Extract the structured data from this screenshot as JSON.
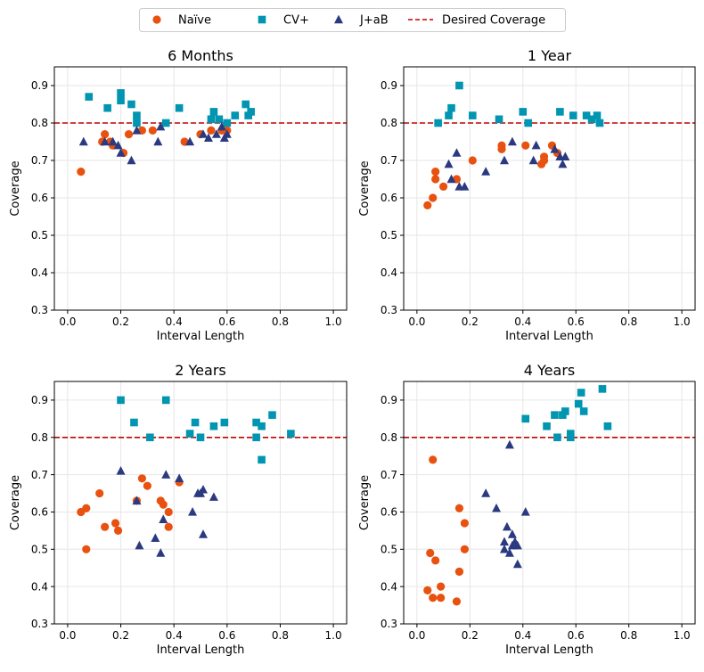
{
  "colors": {
    "naive": "#e8510f",
    "cv_plus": "#0095b0",
    "jab": "#2b3a80",
    "desired": "#c00000",
    "grid": "#e6e6e6",
    "axis": "#000000"
  },
  "legend": {
    "placement": "top-center",
    "items": [
      {
        "key": "naive",
        "label": "Naïve",
        "marker": "circle"
      },
      {
        "key": "cv_plus",
        "label": "CV+",
        "marker": "square"
      },
      {
        "key": "jab",
        "label": "J+aB",
        "marker": "triangle"
      },
      {
        "key": "desired",
        "label": "Desired Coverage",
        "marker": "dashed-line"
      }
    ]
  },
  "chart_data": [
    {
      "type": "scatter",
      "title": "6 Months",
      "xlabel": "Interval Length",
      "ylabel": "Coverage",
      "xlim": [
        -0.05,
        1.05
      ],
      "ylim": [
        0.3,
        0.95
      ],
      "xticks": [
        "0.0",
        "0.2",
        "0.4",
        "0.6",
        "0.8",
        "1.0"
      ],
      "yticks": [
        "0.3",
        "0.4",
        "0.5",
        "0.6",
        "0.7",
        "0.8",
        "0.9"
      ],
      "grid": true,
      "reference_line": {
        "name": "Desired Coverage",
        "y": 0.8
      },
      "series": [
        {
          "name": "Naïve",
          "key": "naive",
          "points": [
            [
              0.05,
              0.67
            ],
            [
              0.13,
              0.75
            ],
            [
              0.14,
              0.77
            ],
            [
              0.16,
              0.75
            ],
            [
              0.17,
              0.74
            ],
            [
              0.21,
              0.72
            ],
            [
              0.23,
              0.77
            ],
            [
              0.28,
              0.78
            ],
            [
              0.32,
              0.78
            ],
            [
              0.44,
              0.75
            ],
            [
              0.5,
              0.77
            ],
            [
              0.54,
              0.78
            ],
            [
              0.58,
              0.78
            ],
            [
              0.6,
              0.78
            ]
          ]
        },
        {
          "name": "CV+",
          "key": "cv_plus",
          "points": [
            [
              0.08,
              0.87
            ],
            [
              0.15,
              0.84
            ],
            [
              0.2,
              0.88
            ],
            [
              0.2,
              0.86
            ],
            [
              0.24,
              0.85
            ],
            [
              0.26,
              0.82
            ],
            [
              0.26,
              0.8
            ],
            [
              0.37,
              0.8
            ],
            [
              0.42,
              0.84
            ],
            [
              0.54,
              0.81
            ],
            [
              0.55,
              0.83
            ],
            [
              0.57,
              0.81
            ],
            [
              0.6,
              0.8
            ],
            [
              0.63,
              0.82
            ],
            [
              0.67,
              0.85
            ],
            [
              0.68,
              0.82
            ],
            [
              0.69,
              0.83
            ]
          ]
        },
        {
          "name": "J+aB",
          "key": "jab",
          "points": [
            [
              0.06,
              0.75
            ],
            [
              0.14,
              0.75
            ],
            [
              0.17,
              0.75
            ],
            [
              0.19,
              0.74
            ],
            [
              0.2,
              0.72
            ],
            [
              0.24,
              0.7
            ],
            [
              0.26,
              0.78
            ],
            [
              0.34,
              0.75
            ],
            [
              0.35,
              0.79
            ],
            [
              0.46,
              0.75
            ],
            [
              0.51,
              0.77
            ],
            [
              0.53,
              0.76
            ],
            [
              0.56,
              0.77
            ],
            [
              0.58,
              0.79
            ],
            [
              0.59,
              0.76
            ],
            [
              0.6,
              0.77
            ]
          ]
        }
      ]
    },
    {
      "type": "scatter",
      "title": "1 Year",
      "xlabel": "Interval Length",
      "ylabel": "Coverage",
      "xlim": [
        -0.05,
        1.05
      ],
      "ylim": [
        0.3,
        0.95
      ],
      "xticks": [
        "0.0",
        "0.2",
        "0.4",
        "0.6",
        "0.8",
        "1.0"
      ],
      "yticks": [
        "0.3",
        "0.4",
        "0.5",
        "0.6",
        "0.7",
        "0.8",
        "0.9"
      ],
      "grid": true,
      "reference_line": {
        "name": "Desired Coverage",
        "y": 0.8
      },
      "series": [
        {
          "name": "Naïve",
          "key": "naive",
          "points": [
            [
              0.04,
              0.58
            ],
            [
              0.06,
              0.6
            ],
            [
              0.07,
              0.67
            ],
            [
              0.07,
              0.65
            ],
            [
              0.1,
              0.63
            ],
            [
              0.15,
              0.65
            ],
            [
              0.21,
              0.7
            ],
            [
              0.32,
              0.73
            ],
            [
              0.32,
              0.74
            ],
            [
              0.41,
              0.74
            ],
            [
              0.47,
              0.69
            ],
            [
              0.48,
              0.71
            ],
            [
              0.48,
              0.7
            ],
            [
              0.51,
              0.74
            ],
            [
              0.53,
              0.72
            ]
          ]
        },
        {
          "name": "CV+",
          "key": "cv_plus",
          "points": [
            [
              0.08,
              0.8
            ],
            [
              0.12,
              0.82
            ],
            [
              0.13,
              0.84
            ],
            [
              0.16,
              0.9
            ],
            [
              0.21,
              0.82
            ],
            [
              0.31,
              0.81
            ],
            [
              0.4,
              0.83
            ],
            [
              0.42,
              0.8
            ],
            [
              0.54,
              0.83
            ],
            [
              0.59,
              0.82
            ],
            [
              0.64,
              0.82
            ],
            [
              0.66,
              0.81
            ],
            [
              0.68,
              0.82
            ],
            [
              0.69,
              0.8
            ]
          ]
        },
        {
          "name": "J+aB",
          "key": "jab",
          "points": [
            [
              0.12,
              0.69
            ],
            [
              0.13,
              0.65
            ],
            [
              0.15,
              0.72
            ],
            [
              0.16,
              0.63
            ],
            [
              0.18,
              0.63
            ],
            [
              0.26,
              0.67
            ],
            [
              0.33,
              0.7
            ],
            [
              0.36,
              0.75
            ],
            [
              0.44,
              0.7
            ],
            [
              0.45,
              0.74
            ],
            [
              0.52,
              0.73
            ],
            [
              0.54,
              0.71
            ],
            [
              0.55,
              0.69
            ],
            [
              0.56,
              0.71
            ]
          ]
        }
      ]
    },
    {
      "type": "scatter",
      "title": "2 Years",
      "xlabel": "Interval Length",
      "ylabel": "Coverage",
      "xlim": [
        -0.05,
        1.05
      ],
      "ylim": [
        0.3,
        0.95
      ],
      "xticks": [
        "0.0",
        "0.2",
        "0.4",
        "0.6",
        "0.8",
        "1.0"
      ],
      "yticks": [
        "0.3",
        "0.4",
        "0.5",
        "0.6",
        "0.7",
        "0.8",
        "0.9"
      ],
      "grid": true,
      "reference_line": {
        "name": "Desired Coverage",
        "y": 0.8
      },
      "series": [
        {
          "name": "Naïve",
          "key": "naive",
          "points": [
            [
              0.05,
              0.6
            ],
            [
              0.07,
              0.5
            ],
            [
              0.07,
              0.61
            ],
            [
              0.12,
              0.65
            ],
            [
              0.14,
              0.56
            ],
            [
              0.18,
              0.57
            ],
            [
              0.19,
              0.55
            ],
            [
              0.26,
              0.63
            ],
            [
              0.28,
              0.69
            ],
            [
              0.3,
              0.67
            ],
            [
              0.35,
              0.63
            ],
            [
              0.36,
              0.62
            ],
            [
              0.38,
              0.56
            ],
            [
              0.38,
              0.6
            ],
            [
              0.42,
              0.68
            ]
          ]
        },
        {
          "name": "CV+",
          "key": "cv_plus",
          "points": [
            [
              0.2,
              0.9
            ],
            [
              0.25,
              0.84
            ],
            [
              0.31,
              0.8
            ],
            [
              0.37,
              0.9
            ],
            [
              0.46,
              0.81
            ],
            [
              0.48,
              0.84
            ],
            [
              0.5,
              0.8
            ],
            [
              0.55,
              0.83
            ],
            [
              0.59,
              0.84
            ],
            [
              0.71,
              0.84
            ],
            [
              0.71,
              0.8
            ],
            [
              0.73,
              0.83
            ],
            [
              0.73,
              0.74
            ],
            [
              0.77,
              0.86
            ],
            [
              0.84,
              0.81
            ]
          ]
        },
        {
          "name": "J+aB",
          "key": "jab",
          "points": [
            [
              0.2,
              0.71
            ],
            [
              0.26,
              0.63
            ],
            [
              0.27,
              0.51
            ],
            [
              0.33,
              0.53
            ],
            [
              0.35,
              0.49
            ],
            [
              0.36,
              0.58
            ],
            [
              0.37,
              0.7
            ],
            [
              0.42,
              0.69
            ],
            [
              0.47,
              0.6
            ],
            [
              0.49,
              0.65
            ],
            [
              0.5,
              0.65
            ],
            [
              0.51,
              0.54
            ],
            [
              0.51,
              0.66
            ],
            [
              0.55,
              0.64
            ]
          ]
        }
      ]
    },
    {
      "type": "scatter",
      "title": "4 Years",
      "xlabel": "Interval Length",
      "ylabel": "Coverage",
      "xlim": [
        -0.05,
        1.05
      ],
      "ylim": [
        0.3,
        0.95
      ],
      "xticks": [
        "0.0",
        "0.2",
        "0.4",
        "0.6",
        "0.8",
        "1.0"
      ],
      "yticks": [
        "0.3",
        "0.4",
        "0.5",
        "0.6",
        "0.7",
        "0.8",
        "0.9"
      ],
      "grid": true,
      "reference_line": {
        "name": "Desired Coverage",
        "y": 0.8
      },
      "series": [
        {
          "name": "Naïve",
          "key": "naive",
          "points": [
            [
              0.04,
              0.39
            ],
            [
              0.05,
              0.49
            ],
            [
              0.06,
              0.74
            ],
            [
              0.06,
              0.37
            ],
            [
              0.07,
              0.47
            ],
            [
              0.09,
              0.4
            ],
            [
              0.09,
              0.37
            ],
            [
              0.15,
              0.36
            ],
            [
              0.16,
              0.44
            ],
            [
              0.16,
              0.61
            ],
            [
              0.16,
              0.44
            ],
            [
              0.18,
              0.57
            ],
            [
              0.18,
              0.5
            ]
          ]
        },
        {
          "name": "CV+",
          "key": "cv_plus",
          "points": [
            [
              0.41,
              0.85
            ],
            [
              0.49,
              0.83
            ],
            [
              0.52,
              0.86
            ],
            [
              0.53,
              0.8
            ],
            [
              0.55,
              0.86
            ],
            [
              0.56,
              0.87
            ],
            [
              0.58,
              0.8
            ],
            [
              0.58,
              0.81
            ],
            [
              0.61,
              0.89
            ],
            [
              0.62,
              0.92
            ],
            [
              0.63,
              0.87
            ],
            [
              0.7,
              0.93
            ],
            [
              0.72,
              0.83
            ]
          ]
        },
        {
          "name": "J+aB",
          "key": "jab",
          "points": [
            [
              0.26,
              0.65
            ],
            [
              0.3,
              0.61
            ],
            [
              0.33,
              0.5
            ],
            [
              0.33,
              0.52
            ],
            [
              0.34,
              0.56
            ],
            [
              0.35,
              0.49
            ],
            [
              0.35,
              0.78
            ],
            [
              0.36,
              0.54
            ],
            [
              0.36,
              0.51
            ],
            [
              0.37,
              0.52
            ],
            [
              0.38,
              0.46
            ],
            [
              0.38,
              0.51
            ],
            [
              0.41,
              0.6
            ]
          ]
        }
      ]
    }
  ]
}
